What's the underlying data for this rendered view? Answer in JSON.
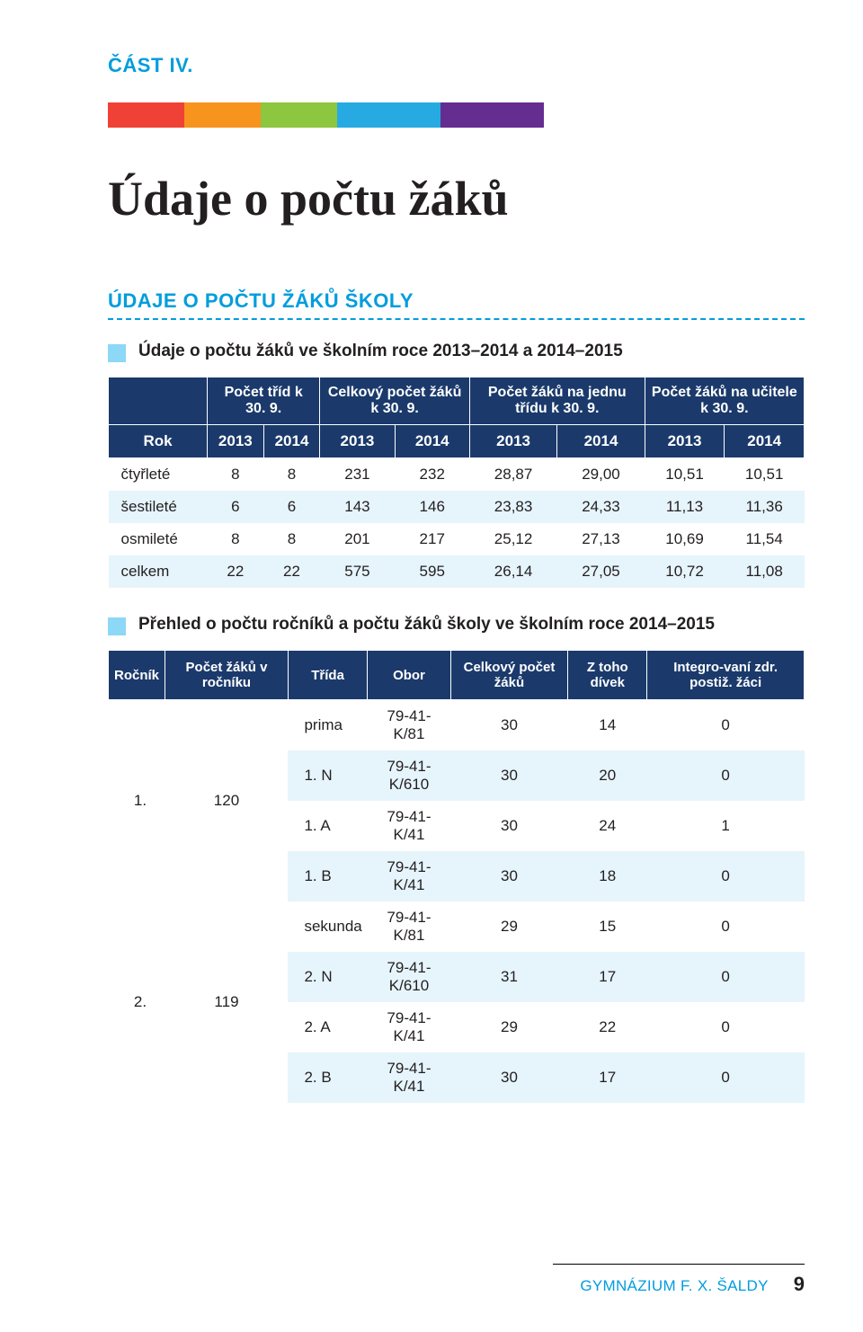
{
  "part_label": "ČÁST IV.",
  "stripe_colors": [
    "#ef4136",
    "#f7941e",
    "#8dc63f",
    "#27aae1",
    "#662d91"
  ],
  "main_title": "Údaje o počtu žáků",
  "section_title": "ÚDAJE O POČTU ŽÁKŮ ŠKOLY",
  "subsection_1": "Údaje o počtu žáků ve školním roce 2013–2014 a 2014–2015",
  "table1": {
    "header_groups": [
      "Počet tříd k 30. 9.",
      "Celkový počet žáků k 30. 9.",
      "Počet žáků na jednu třídu k 30. 9.",
      "Počet žáků na učitele k 30. 9."
    ],
    "year_row_label": "Rok",
    "years": [
      "2013",
      "2014",
      "2013",
      "2014",
      "2013",
      "2014",
      "2013",
      "2014"
    ],
    "rows": [
      {
        "label": "čtyřleté",
        "cells": [
          "8",
          "8",
          "231",
          "232",
          "28,87",
          "29,00",
          "10,51",
          "10,51"
        ]
      },
      {
        "label": "šestileté",
        "cells": [
          "6",
          "6",
          "143",
          "146",
          "23,83",
          "24,33",
          "11,13",
          "11,36"
        ]
      },
      {
        "label": "osmileté",
        "cells": [
          "8",
          "8",
          "201",
          "217",
          "25,12",
          "27,13",
          "10,69",
          "11,54"
        ]
      },
      {
        "label": "celkem",
        "cells": [
          "22",
          "22",
          "575",
          "595",
          "26,14",
          "27,05",
          "10,72",
          "11,08"
        ]
      }
    ]
  },
  "subsection_2": "Přehled o počtu ročníků a počtu žáků školy ve školním roce 2014–2015",
  "table2": {
    "headers": [
      "Ročník",
      "Počet žáků v ročníku",
      "Třída",
      "Obor",
      "Celkový počet žáků",
      "Z toho dívek",
      "Integro-vaní zdr. postiž. žáci"
    ],
    "groups": [
      {
        "rocnik": "1.",
        "pocet": "120",
        "rows": [
          [
            "prima",
            "79-41-K/81",
            "30",
            "14",
            "0"
          ],
          [
            "1. N",
            "79-41-K/610",
            "30",
            "20",
            "0"
          ],
          [
            "1. A",
            "79-41-K/41",
            "30",
            "24",
            "1"
          ],
          [
            "1. B",
            "79-41-K/41",
            "30",
            "18",
            "0"
          ]
        ]
      },
      {
        "rocnik": "2.",
        "pocet": "119",
        "rows": [
          [
            "sekunda",
            "79-41-K/81",
            "29",
            "15",
            "0"
          ],
          [
            "2. N",
            "79-41-K/610",
            "31",
            "17",
            "0"
          ],
          [
            "2. A",
            "79-41-K/41",
            "29",
            "22",
            "0"
          ],
          [
            "2. B",
            "79-41-K/41",
            "30",
            "17",
            "0"
          ]
        ]
      }
    ]
  },
  "footer_school": "GYMNÁZIUM F. X. ŠALDY",
  "footer_page": "9",
  "colors": {
    "header_bg": "#1b3a6b",
    "row_alt": "#e6f4fc",
    "accent": "#009ddc",
    "subsquare": "#8dd7f7"
  }
}
